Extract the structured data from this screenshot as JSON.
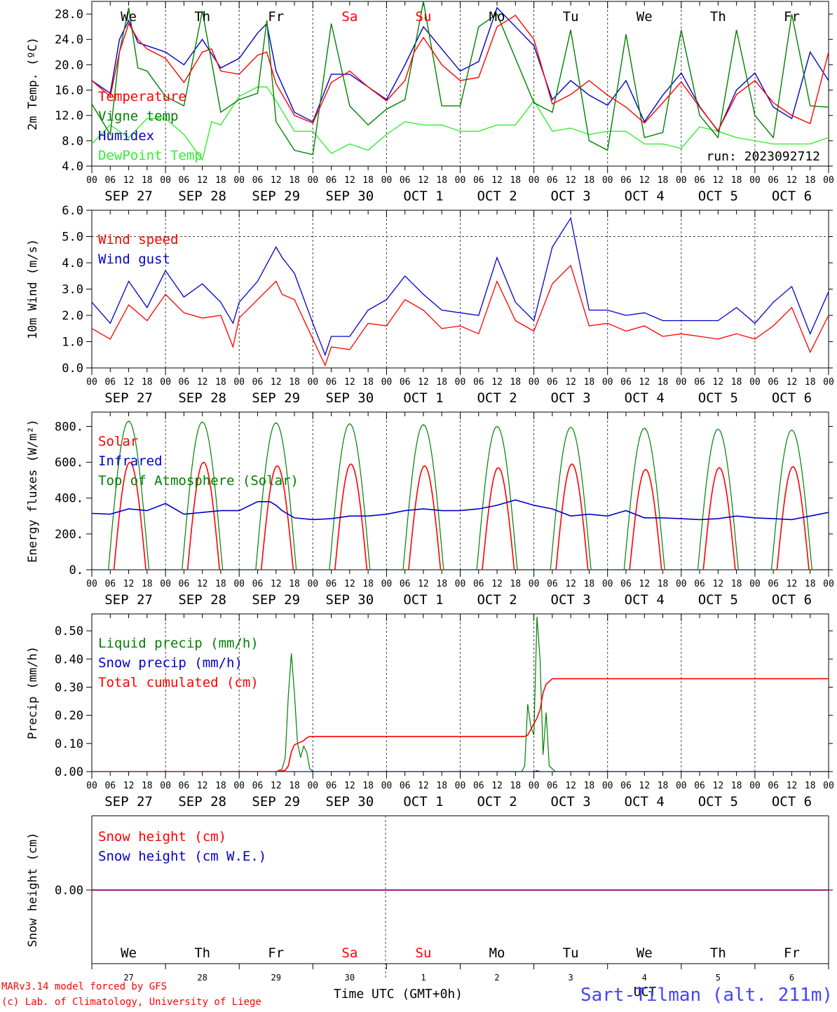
{
  "time_axis": {
    "hour_ticks": [
      "00",
      "06",
      "12",
      "18"
    ],
    "end_tick": "00",
    "dates": [
      "SEP 27",
      "SEP 28",
      "SEP 29",
      "SEP 30",
      "OCT  1",
      "OCT  2",
      "OCT  3",
      "OCT  4",
      "OCT  5",
      "OCT  6"
    ],
    "weekdays": [
      "We",
      "Th",
      "Fr",
      "Sa",
      "Su",
      "Mo",
      "Tu",
      "We",
      "Th",
      "Fr"
    ],
    "weekday_colors": [
      "#000000",
      "#000000",
      "#000000",
      "#ff0000",
      "#ff0000",
      "#000000",
      "#000000",
      "#000000",
      "#000000",
      "#000000"
    ],
    "day_numbers": [
      "27",
      "28",
      "29",
      "30",
      "1",
      "2",
      "3",
      "4",
      "5",
      "6"
    ],
    "xlabel": "Time UTC (GMT+0h)"
  },
  "footer": {
    "model": "MARv3.14 model forced by GFS",
    "credit": "(c) Lab. of Climatology, University of Liege",
    "station": "Sart-Tilman (alt. 211m)",
    "station_overlap": "UCT"
  },
  "chart_data": [
    {
      "type": "line",
      "ylabel": "2m Temp. (ºC)",
      "ylim": [
        4,
        30
      ],
      "yticks": [
        "4.0",
        "8.0",
        "12.0",
        "16.0",
        "20.0",
        "24.0",
        "28.0"
      ],
      "yticks_values": [
        4,
        8,
        12,
        16,
        20,
        24,
        28
      ],
      "annotation": "run: 2023092712",
      "x_unit": "hours from SEP 27 00 UTC",
      "series": [
        {
          "name": "Temperature",
          "color": "#ff0000",
          "x": [
            0,
            6,
            9,
            12,
            15,
            18,
            24,
            30,
            36,
            39,
            42,
            48,
            51,
            54,
            57,
            60,
            66,
            72,
            78,
            84,
            90,
            96,
            102,
            105,
            108,
            114,
            120,
            126,
            132,
            138,
            144,
            150,
            156,
            162,
            168,
            174,
            180,
            186,
            192,
            198,
            204,
            210,
            216,
            222,
            228,
            234,
            240
          ],
          "y": [
            17.5,
            15,
            22,
            26.5,
            24,
            22.5,
            21,
            17.2,
            22,
            22.5,
            19,
            18.5,
            20,
            21.5,
            22,
            17,
            12,
            10.8,
            17.2,
            19,
            16.5,
            14.3,
            17.5,
            22,
            24.3,
            20,
            17.5,
            18,
            26,
            27.8,
            24,
            13.8,
            15.3,
            17.5,
            15.2,
            13.3,
            10.8,
            14,
            17.3,
            13.3,
            9.6,
            15.3,
            17.5,
            14,
            12,
            10.7,
            22
          ]
        },
        {
          "name": "Vigne temp",
          "color": "#008000",
          "x": [
            0,
            6,
            9,
            12,
            15,
            18,
            24,
            30,
            36,
            42,
            48,
            54,
            57,
            60,
            66,
            72,
            78,
            84,
            90,
            96,
            102,
            108,
            114,
            120,
            126,
            132,
            138,
            144,
            150,
            156,
            162,
            168,
            174,
            180,
            186,
            192,
            198,
            204,
            210,
            216,
            222,
            228,
            234,
            240
          ],
          "y": [
            13.8,
            9,
            22,
            29,
            19.5,
            19,
            15,
            13.5,
            28.5,
            12.5,
            14.5,
            15.5,
            27,
            11,
            6.5,
            5.8,
            26.5,
            13.5,
            10.5,
            13,
            14.5,
            30,
            13.5,
            13.5,
            26,
            28,
            21,
            14,
            12.5,
            25.5,
            8,
            6.5,
            24.8,
            8.5,
            9.3,
            25.5,
            12,
            8.5,
            25.5,
            12,
            8.5,
            28,
            13.5,
            13.3
          ]
        },
        {
          "name": "Humidex",
          "color": "#0000cc",
          "x": [
            0,
            6,
            9,
            12,
            15,
            18,
            24,
            30,
            36,
            42,
            48,
            54,
            57,
            60,
            66,
            72,
            78,
            84,
            90,
            96,
            102,
            108,
            114,
            120,
            126,
            132,
            138,
            144,
            150,
            156,
            162,
            168,
            174,
            180,
            186,
            192,
            198,
            204,
            210,
            216,
            222,
            228,
            234,
            240
          ],
          "y": [
            17.5,
            15.5,
            24,
            27,
            23.5,
            23,
            22,
            20,
            24,
            19.5,
            21,
            25,
            26.5,
            19,
            12.5,
            11,
            18.5,
            18.5,
            16.5,
            14.5,
            20,
            26,
            22.5,
            19,
            20.5,
            29,
            26,
            23,
            14.5,
            17.5,
            15.2,
            13.6,
            17.5,
            11,
            15.2,
            18.7,
            13.4,
            9.5,
            16,
            18.7,
            13.3,
            11.5,
            22,
            17.5
          ]
        },
        {
          "name": "DewPoint Temp",
          "color": "#33ee33",
          "x": [
            0,
            6,
            12,
            18,
            24,
            30,
            36,
            39,
            42,
            48,
            54,
            57,
            60,
            66,
            72,
            78,
            84,
            90,
            96,
            102,
            108,
            114,
            120,
            126,
            132,
            138,
            144,
            150,
            156,
            162,
            168,
            174,
            180,
            186,
            192,
            198,
            204,
            210,
            216,
            222,
            228,
            234,
            240
          ],
          "y": [
            7.5,
            10.5,
            8.5,
            11.5,
            11.5,
            9,
            5,
            11,
            10.5,
            15,
            16.5,
            16.5,
            14.3,
            9.5,
            9.5,
            6,
            7.5,
            6.5,
            9,
            11,
            10.5,
            10.5,
            9.5,
            9.5,
            10.5,
            10.5,
            14.3,
            9.5,
            10,
            9,
            9.5,
            9.5,
            7.5,
            7.5,
            6.8,
            10.2,
            9.5,
            8.5,
            8,
            7.5,
            7.5,
            7.5,
            8.5
          ]
        }
      ]
    },
    {
      "type": "line",
      "ylabel": "10m Wind (m/s)",
      "ylim": [
        0,
        6
      ],
      "yticks": [
        "0.0",
        "1.0",
        "2.0",
        "3.0",
        "4.0",
        "5.0",
        "6.0"
      ],
      "yticks_values": [
        0,
        1,
        2,
        3,
        4,
        5,
        6
      ],
      "dashed_ref_y": 5,
      "x_unit": "hours from SEP 27 00 UTC",
      "series": [
        {
          "name": "Wind speed",
          "color": "#ff0000",
          "x": [
            0,
            6,
            12,
            18,
            24,
            30,
            36,
            42,
            46,
            48,
            54,
            60,
            62,
            66,
            72,
            76,
            78,
            84,
            90,
            96,
            102,
            108,
            114,
            120,
            126,
            132,
            138,
            144,
            150,
            156,
            162,
            168,
            174,
            180,
            186,
            192,
            198,
            204,
            210,
            216,
            222,
            228,
            234,
            240
          ],
          "y": [
            1.5,
            1.1,
            2.4,
            1.8,
            2.8,
            2.1,
            1.9,
            2.0,
            0.8,
            1.9,
            2.6,
            3.3,
            2.8,
            2.6,
            1.1,
            0.1,
            0.8,
            0.7,
            1.7,
            1.6,
            2.6,
            2.2,
            1.5,
            1.6,
            1.3,
            3.3,
            1.8,
            1.4,
            3.2,
            3.9,
            1.6,
            1.7,
            1.4,
            1.6,
            1.2,
            1.3,
            1.2,
            1.1,
            1.3,
            1.1,
            1.6,
            2.3,
            0.6,
            2.0
          ]
        },
        {
          "name": "Wind gust",
          "color": "#0000cc",
          "x": [
            0,
            6,
            12,
            18,
            24,
            30,
            36,
            42,
            46,
            48,
            54,
            60,
            62,
            66,
            72,
            76,
            78,
            84,
            90,
            96,
            102,
            108,
            114,
            120,
            126,
            132,
            138,
            144,
            150,
            156,
            162,
            168,
            174,
            180,
            186,
            192,
            198,
            204,
            210,
            216,
            222,
            228,
            234,
            240
          ],
          "y": [
            2.5,
            1.7,
            3.3,
            2.3,
            3.7,
            2.7,
            3.2,
            2.5,
            1.7,
            2.5,
            3.3,
            4.6,
            4.2,
            3.6,
            1.7,
            0.5,
            1.2,
            1.2,
            2.2,
            2.6,
            3.5,
            2.8,
            2.2,
            2.1,
            2.0,
            4.2,
            2.5,
            1.8,
            4.6,
            5.7,
            2.2,
            2.2,
            2.0,
            2.1,
            1.8,
            1.8,
            1.8,
            1.8,
            2.3,
            1.7,
            2.5,
            3.1,
            1.3,
            2.9
          ]
        }
      ]
    },
    {
      "type": "line",
      "ylabel": "Energy fluxes (W/m²)",
      "ylim": [
        0,
        880
      ],
      "yticks": [
        "0.",
        "200.",
        "400.",
        "600.",
        "800."
      ],
      "yticks_values": [
        0,
        200,
        400,
        600,
        800
      ],
      "x_unit": "hours from SEP 27 00 UTC",
      "peaks": {
        "toa_solar": [
          830,
          825,
          820,
          815,
          810,
          800,
          795,
          790,
          785,
          780
        ],
        "solar": [
          600,
          600,
          580,
          590,
          580,
          570,
          590,
          560,
          570,
          575
        ]
      },
      "infrared": {
        "x": [
          0,
          6,
          12,
          18,
          24,
          30,
          36,
          42,
          48,
          54,
          58,
          60,
          62,
          66,
          72,
          78,
          84,
          90,
          96,
          102,
          108,
          114,
          120,
          126,
          132,
          138,
          144,
          150,
          156,
          162,
          168,
          174,
          180,
          186,
          192,
          198,
          204,
          210,
          216,
          222,
          228,
          234,
          240
        ],
        "y": [
          315,
          310,
          340,
          330,
          370,
          310,
          320,
          330,
          330,
          380,
          380,
          360,
          330,
          290,
          280,
          285,
          300,
          300,
          310,
          330,
          340,
          330,
          330,
          340,
          360,
          390,
          360,
          340,
          300,
          310,
          300,
          330,
          290,
          290,
          285,
          280,
          285,
          300,
          290,
          285,
          280,
          300,
          320
        ]
      },
      "series": [
        {
          "name": "Solar",
          "color": "#ff0000"
        },
        {
          "name": "Infrared",
          "color": "#0000cc"
        },
        {
          "name": "Top of Atmosphere (Solar)",
          "color": "#008000"
        }
      ]
    },
    {
      "type": "line",
      "ylabel": "Precip (mm/h)",
      "ylim": [
        0,
        0.56
      ],
      "yticks": [
        "0.00",
        "0.10",
        "0.20",
        "0.30",
        "0.40",
        "0.50"
      ],
      "yticks_values": [
        0,
        0.1,
        0.2,
        0.3,
        0.4,
        0.5
      ],
      "x_unit": "hours from SEP 27 00 UTC",
      "series": [
        {
          "name": "Liquid precip (mm/h)",
          "color": "#008000",
          "x": [
            0,
            60,
            62,
            63,
            64,
            65,
            66,
            67,
            68,
            69,
            70,
            71,
            72,
            140,
            141,
            142,
            143,
            144,
            145,
            146,
            147,
            148,
            149,
            150,
            151,
            152,
            153,
            240
          ],
          "y": [
            0,
            0,
            0.01,
            0.05,
            0.27,
            0.42,
            0.28,
            0.1,
            0.05,
            0.09,
            0.07,
            0.01,
            0,
            0,
            0.02,
            0.24,
            0.16,
            0.13,
            0.55,
            0.4,
            0.06,
            0.21,
            0.02,
            0.01,
            0,
            0,
            0,
            0
          ]
        },
        {
          "name": "Snow precip (mm/h)",
          "color": "#0000cc",
          "x": [
            0,
            144,
            145,
            146,
            240
          ],
          "y": [
            0,
            0,
            0.003,
            0,
            0
          ]
        },
        {
          "name": "Total cumulated (cm)",
          "color": "#ff0000",
          "x": [
            0,
            60,
            63,
            64,
            65,
            66,
            67,
            68,
            69,
            70,
            71,
            72,
            141,
            142,
            143,
            144,
            145,
            146,
            147,
            148,
            149,
            150,
            151,
            240
          ],
          "y": [
            0,
            0,
            0.005,
            0.02,
            0.07,
            0.095,
            0.1,
            0.105,
            0.11,
            0.12,
            0.125,
            0.125,
            0.125,
            0.13,
            0.15,
            0.17,
            0.19,
            0.22,
            0.28,
            0.31,
            0.32,
            0.33,
            0.33,
            0.33
          ]
        }
      ]
    },
    {
      "type": "line",
      "ylabel": "Snow height (cm)",
      "yticks": [
        "0.00"
      ],
      "yticks_values": [
        0
      ],
      "series": [
        {
          "name": "Snow height (cm)",
          "color": "#ff0000",
          "x": [
            0,
            240
          ],
          "y": [
            0,
            0
          ]
        },
        {
          "name": "Snow height (cm W.E.)",
          "color": "#0000cc",
          "x": [
            0,
            240
          ],
          "y": [
            0,
            0
          ]
        }
      ]
    }
  ]
}
